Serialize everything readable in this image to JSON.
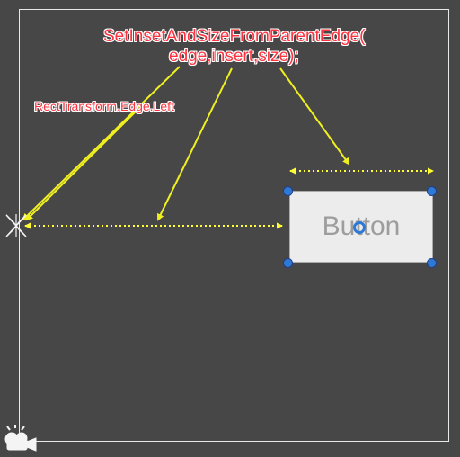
{
  "annotation": {
    "title_line_1": "SetInsetAndSizeFromParentEdge(",
    "title_line_2": "edge,insert,size);",
    "edge_label": "RectTransform.Edge.Left"
  },
  "button": {
    "label": "Button"
  },
  "colors": {
    "background": "#474747",
    "frame": "#e9e9e9",
    "annotation_text": "#ff3340",
    "arrow": "#f0f020",
    "dotted_guide": "#ffff33",
    "handle": "#2f79d6",
    "button_face": "#ececec",
    "button_text": "#9d9d9d"
  },
  "icons": {
    "anchor": "anchor-icon",
    "camera": "camera-icon",
    "pivot": "pivot-handle"
  }
}
